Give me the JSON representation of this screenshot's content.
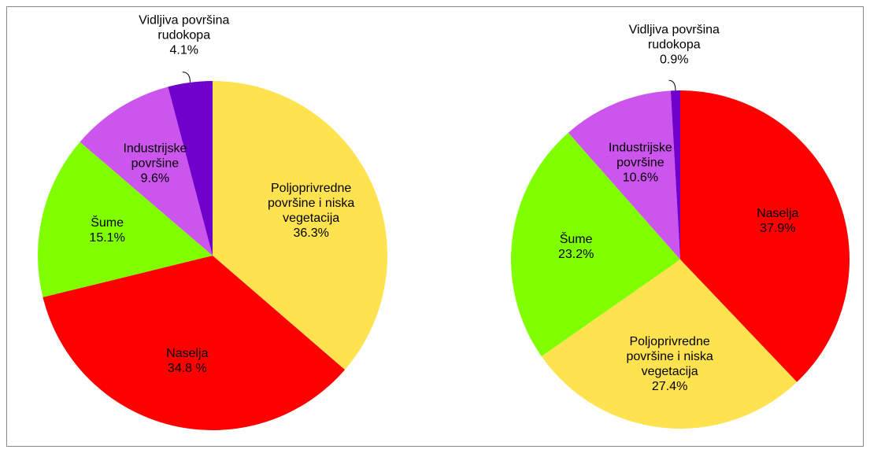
{
  "chart_data": [
    {
      "type": "pie",
      "categories": [
        "Poljoprivredne površine i niska vegetacija",
        "Naselja",
        "Šume",
        "Industrijske površine",
        "Vidljiva površina rudokopa"
      ],
      "values": [
        36.3,
        34.8,
        15.1,
        9.6,
        4.1
      ],
      "value_labels": [
        "36.3%",
        "34.8 %",
        "15.1%",
        "9.6%",
        "4.1%"
      ],
      "colors": [
        "#ffe24f",
        "#ff0000",
        "#80ff00",
        "#cc55ee",
        "#7000cc"
      ]
    },
    {
      "type": "pie",
      "categories": [
        "Naselja",
        "Poljoprivredne površine i niska vegetacija",
        "Šume",
        "Industrijske površine",
        "Vidljiva površina rudokopa"
      ],
      "values": [
        37.9,
        27.4,
        23.2,
        10.6,
        0.9
      ],
      "value_labels": [
        "37.9%",
        "27.4%",
        "23.2%",
        "10.6%",
        "0.9%"
      ],
      "colors": [
        "#ff0000",
        "#ffe24f",
        "#80ff00",
        "#cc55ee",
        "#7000cc"
      ]
    }
  ]
}
